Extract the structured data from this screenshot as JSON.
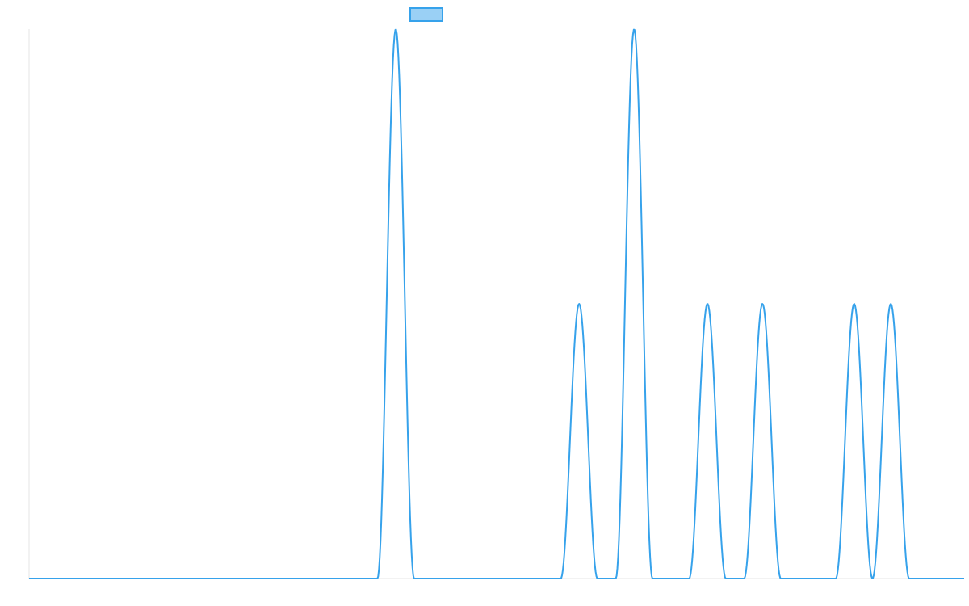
{
  "chart_data": {
    "type": "line",
    "title": "",
    "xlabel": "",
    "ylabel": "",
    "legend": {
      "placement": "top-center",
      "entries": [
        ""
      ]
    },
    "grid": false,
    "xlim": [
      0,
      102
    ],
    "ylim": [
      0,
      2
    ],
    "series": [
      {
        "name": "",
        "color": "#36a2eb",
        "fill_color": "#9ad0f5",
        "peaks": [
          {
            "center": 40,
            "height": 2
          },
          {
            "center": 60,
            "height": 1
          },
          {
            "center": 66,
            "height": 2
          },
          {
            "center": 74,
            "height": 1
          },
          {
            "center": 80,
            "height": 1
          },
          {
            "center": 90,
            "height": 1
          },
          {
            "center": 94,
            "height": 1
          }
        ],
        "peak_half_width": 2
      }
    ]
  }
}
